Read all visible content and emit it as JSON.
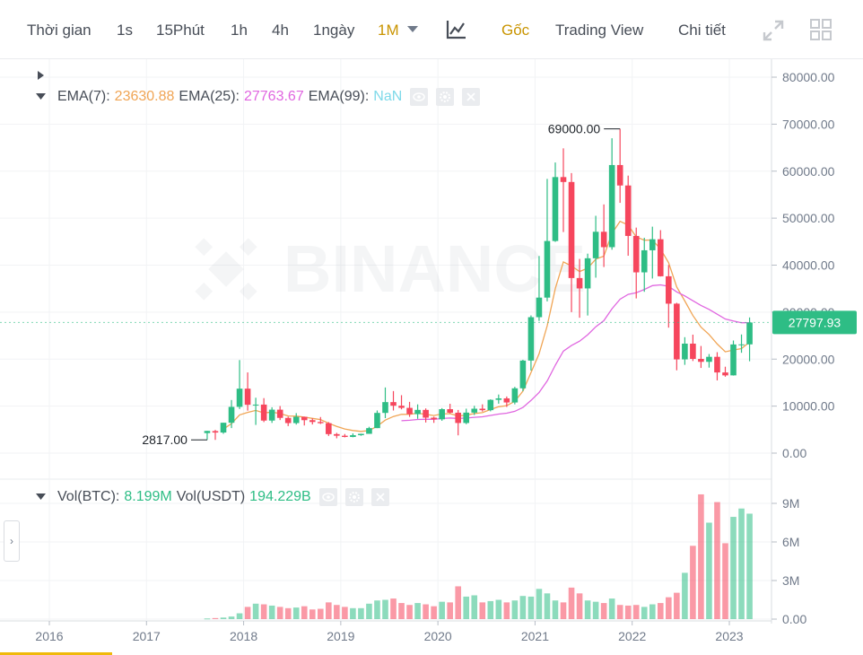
{
  "toolbar": {
    "items": [
      {
        "label": "Thời gian",
        "active": false
      },
      {
        "label": "1s",
        "active": false
      },
      {
        "label": "15Phút",
        "active": false
      },
      {
        "label": "1h",
        "active": false
      },
      {
        "label": "4h",
        "active": false
      },
      {
        "label": "1ngày",
        "active": false
      },
      {
        "label": "1M",
        "active": true
      }
    ],
    "right_items": [
      {
        "label": "Gốc",
        "active": true
      },
      {
        "label": "Trading View",
        "active": false
      },
      {
        "label": "Chi tiết",
        "active": false
      }
    ],
    "icons": [
      "indicator-chart-icon",
      "fullscreen-icon",
      "grid-layout-icon"
    ]
  },
  "legend": {
    "ema7_label": "EMA(7):",
    "ema7_value": "23630.88",
    "ema25_label": "EMA(25):",
    "ema25_value": "27763.67",
    "ema99_label": "EMA(99):",
    "ema99_value": "NaN",
    "vol_btc_label": "Vol(BTC):",
    "vol_btc_value": "8.199M",
    "vol_usdt_label": "Vol(USDT)",
    "vol_usdt_value": "194.229B"
  },
  "watermark": "BINANCE",
  "colors": {
    "up": "#2ebd85",
    "down": "#f6465d",
    "ema7": "#f0a555",
    "ema25": "#e066e0",
    "accent": "#c99400",
    "price_tag": "#2ebd85"
  },
  "chart_data": {
    "type": "candlestick",
    "interval": "1M",
    "price_axis": {
      "ticks": [
        "80000.00",
        "70000.00",
        "60000.00",
        "50000.00",
        "40000.00",
        "30000.00",
        "20000.00",
        "10000.00",
        "0.00"
      ],
      "range": [
        -2000,
        82000
      ]
    },
    "volume_axis": {
      "ticks": [
        "9M",
        "6M",
        "3M",
        "0.00"
      ],
      "range": [
        0,
        9.5
      ]
    },
    "x_ticks": [
      "2016",
      "2017",
      "2018",
      "2019",
      "2020",
      "2021",
      "2022",
      "2023"
    ],
    "annotations": {
      "high_label": "69000.00",
      "high_value": 69000,
      "low_label": "2817.00",
      "low_value": 2817,
      "current_price": "27797.93",
      "current_value": 27797.93
    },
    "candles": [
      {
        "t": "2017-08",
        "o": 4261,
        "h": 4745,
        "l": 2817,
        "c": 4724,
        "v": 0.05
      },
      {
        "t": "2017-09",
        "o": 4690,
        "h": 4939,
        "l": 2817,
        "c": 4378,
        "v": 0.08
      },
      {
        "t": "2017-10",
        "o": 4378,
        "h": 6470,
        "l": 4110,
        "c": 6463,
        "v": 0.12
      },
      {
        "t": "2017-11",
        "o": 6463,
        "h": 11300,
        "l": 5325,
        "c": 9838,
        "v": 0.2
      },
      {
        "t": "2017-12",
        "o": 9838,
        "h": 19798,
        "l": 9380,
        "c": 13716,
        "v": 0.45
      },
      {
        "t": "2018-01",
        "o": 13716,
        "h": 17176,
        "l": 9035,
        "c": 10285,
        "v": 0.95
      },
      {
        "t": "2018-02",
        "o": 10285,
        "h": 11786,
        "l": 6000,
        "c": 10326,
        "v": 1.2
      },
      {
        "t": "2018-03",
        "o": 10326,
        "h": 11700,
        "l": 6600,
        "c": 6923,
        "v": 1.15
      },
      {
        "t": "2018-04",
        "o": 6923,
        "h": 9759,
        "l": 6430,
        "c": 9246,
        "v": 1.05
      },
      {
        "t": "2018-05",
        "o": 9246,
        "h": 10020,
        "l": 7032,
        "c": 7494,
        "v": 0.95
      },
      {
        "t": "2018-06",
        "o": 7494,
        "h": 7754,
        "l": 5750,
        "c": 6391,
        "v": 0.85
      },
      {
        "t": "2018-07",
        "o": 6391,
        "h": 8507,
        "l": 6070,
        "c": 7730,
        "v": 0.9
      },
      {
        "t": "2018-08",
        "o": 7730,
        "h": 7760,
        "l": 5880,
        "c": 7011,
        "v": 1.0
      },
      {
        "t": "2018-09",
        "o": 7011,
        "h": 7410,
        "l": 6100,
        "c": 6626,
        "v": 0.75
      },
      {
        "t": "2018-10",
        "o": 6626,
        "h": 7680,
        "l": 6200,
        "c": 6371,
        "v": 0.8
      },
      {
        "t": "2018-11",
        "o": 6371,
        "h": 6600,
        "l": 3652,
        "c": 4041,
        "v": 1.3
      },
      {
        "t": "2018-12",
        "o": 4041,
        "h": 4312,
        "l": 3156,
        "c": 3702,
        "v": 1.1
      },
      {
        "t": "2019-01",
        "o": 3702,
        "h": 4069,
        "l": 3349,
        "c": 3434,
        "v": 0.95
      },
      {
        "t": "2019-02",
        "o": 3434,
        "h": 4198,
        "l": 3373,
        "c": 3813,
        "v": 0.85
      },
      {
        "t": "2019-03",
        "o": 3813,
        "h": 4140,
        "l": 3689,
        "c": 4105,
        "v": 0.85
      },
      {
        "t": "2019-04",
        "o": 4105,
        "h": 5600,
        "l": 4100,
        "c": 5320,
        "v": 1.2
      },
      {
        "t": "2019-05",
        "o": 5320,
        "h": 9074,
        "l": 5320,
        "c": 8555,
        "v": 1.45
      },
      {
        "t": "2019-06",
        "o": 8555,
        "h": 13970,
        "l": 7444,
        "c": 10854,
        "v": 1.5
      },
      {
        "t": "2019-07",
        "o": 10854,
        "h": 13200,
        "l": 9070,
        "c": 10085,
        "v": 1.6
      },
      {
        "t": "2019-08",
        "o": 10085,
        "h": 12327,
        "l": 9320,
        "c": 9630,
        "v": 1.25
      },
      {
        "t": "2019-09",
        "o": 9630,
        "h": 10905,
        "l": 7710,
        "c": 8293,
        "v": 1.1
      },
      {
        "t": "2019-10",
        "o": 8293,
        "h": 10370,
        "l": 7300,
        "c": 9199,
        "v": 1.25
      },
      {
        "t": "2019-11",
        "o": 9199,
        "h": 9513,
        "l": 6515,
        "c": 7546,
        "v": 1.15
      },
      {
        "t": "2019-12",
        "o": 7546,
        "h": 7750,
        "l": 6435,
        "c": 7195,
        "v": 1.0
      },
      {
        "t": "2020-01",
        "o": 7195,
        "h": 9578,
        "l": 6871,
        "c": 9352,
        "v": 1.35
      },
      {
        "t": "2020-02",
        "o": 9352,
        "h": 10500,
        "l": 8445,
        "c": 8599,
        "v": 1.3
      },
      {
        "t": "2020-03",
        "o": 8599,
        "h": 9188,
        "l": 3782,
        "c": 6410,
        "v": 2.55
      },
      {
        "t": "2020-04",
        "o": 6410,
        "h": 9460,
        "l": 6150,
        "c": 8620,
        "v": 1.75
      },
      {
        "t": "2020-05",
        "o": 8620,
        "h": 10067,
        "l": 8117,
        "c": 9448,
        "v": 1.85
      },
      {
        "t": "2020-06",
        "o": 9448,
        "h": 10380,
        "l": 8833,
        "c": 9138,
        "v": 1.3
      },
      {
        "t": "2020-07",
        "o": 9138,
        "h": 11444,
        "l": 8893,
        "c": 11335,
        "v": 1.4
      },
      {
        "t": "2020-08",
        "o": 11335,
        "h": 12468,
        "l": 10518,
        "c": 11649,
        "v": 1.5
      },
      {
        "t": "2020-09",
        "o": 11649,
        "h": 12050,
        "l": 9825,
        "c": 10776,
        "v": 1.3
      },
      {
        "t": "2020-10",
        "o": 10776,
        "h": 14100,
        "l": 10374,
        "c": 13791,
        "v": 1.45
      },
      {
        "t": "2020-11",
        "o": 13791,
        "h": 19863,
        "l": 13195,
        "c": 19695,
        "v": 1.8
      },
      {
        "t": "2020-12",
        "o": 19695,
        "h": 29300,
        "l": 17572,
        "c": 28923,
        "v": 1.75
      },
      {
        "t": "2021-01",
        "o": 28923,
        "h": 41950,
        "l": 28130,
        "c": 33092,
        "v": 2.35
      },
      {
        "t": "2021-02",
        "o": 33092,
        "h": 58352,
        "l": 32296,
        "c": 45135,
        "v": 2.0
      },
      {
        "t": "2021-03",
        "o": 45135,
        "h": 61844,
        "l": 44950,
        "c": 58740,
        "v": 1.45
      },
      {
        "t": "2021-04",
        "o": 58740,
        "h": 64854,
        "l": 47044,
        "c": 57694,
        "v": 1.3
      },
      {
        "t": "2021-05",
        "o": 57694,
        "h": 59593,
        "l": 30000,
        "c": 37253,
        "v": 2.45
      },
      {
        "t": "2021-06",
        "o": 37253,
        "h": 41330,
        "l": 28805,
        "c": 35045,
        "v": 2.0
      },
      {
        "t": "2021-07",
        "o": 35045,
        "h": 42448,
        "l": 29278,
        "c": 41461,
        "v": 1.45
      },
      {
        "t": "2021-08",
        "o": 41461,
        "h": 50500,
        "l": 37332,
        "c": 47100,
        "v": 1.35
      },
      {
        "t": "2021-09",
        "o": 47100,
        "h": 52920,
        "l": 39600,
        "c": 43824,
        "v": 1.25
      },
      {
        "t": "2021-10",
        "o": 43824,
        "h": 67000,
        "l": 43283,
        "c": 61299,
        "v": 1.6
      },
      {
        "t": "2021-11",
        "o": 61299,
        "h": 69000,
        "l": 53256,
        "c": 56950,
        "v": 1.1
      },
      {
        "t": "2021-12",
        "o": 56950,
        "h": 59053,
        "l": 42000,
        "c": 46216,
        "v": 1.05
      },
      {
        "t": "2022-01",
        "o": 46216,
        "h": 47990,
        "l": 32917,
        "c": 38466,
        "v": 1.1
      },
      {
        "t": "2022-02",
        "o": 38466,
        "h": 45821,
        "l": 34322,
        "c": 43160,
        "v": 0.95
      },
      {
        "t": "2022-03",
        "o": 43160,
        "h": 48189,
        "l": 37155,
        "c": 45510,
        "v": 1.15
      },
      {
        "t": "2022-04",
        "o": 45510,
        "h": 47444,
        "l": 37578,
        "c": 37630,
        "v": 1.25
      },
      {
        "t": "2022-05",
        "o": 37630,
        "h": 40023,
        "l": 26700,
        "c": 31801,
        "v": 1.7
      },
      {
        "t": "2022-06",
        "o": 31801,
        "h": 31986,
        "l": 17622,
        "c": 19942,
        "v": 2.05
      },
      {
        "t": "2022-07",
        "o": 19942,
        "h": 24668,
        "l": 18782,
        "c": 23296,
        "v": 3.6
      },
      {
        "t": "2022-08",
        "o": 23296,
        "h": 25211,
        "l": 19600,
        "c": 20050,
        "v": 5.7
      },
      {
        "t": "2022-09",
        "o": 20050,
        "h": 22800,
        "l": 18125,
        "c": 19423,
        "v": 9.7
      },
      {
        "t": "2022-10",
        "o": 19423,
        "h": 21085,
        "l": 18190,
        "c": 20490,
        "v": 7.5
      },
      {
        "t": "2022-11",
        "o": 20490,
        "h": 21480,
        "l": 15476,
        "c": 17164,
        "v": 9.1
      },
      {
        "t": "2022-12",
        "o": 17164,
        "h": 18387,
        "l": 16256,
        "c": 16542,
        "v": 5.9
      },
      {
        "t": "2023-01",
        "o": 16542,
        "h": 23960,
        "l": 16500,
        "c": 23125,
        "v": 7.95
      },
      {
        "t": "2023-02",
        "o": 23125,
        "h": 25250,
        "l": 21351,
        "c": 23141,
        "v": 8.6
      },
      {
        "t": "2023-03",
        "o": 23141,
        "h": 28868,
        "l": 19549,
        "c": 27797.93,
        "v": 8.199
      }
    ]
  }
}
